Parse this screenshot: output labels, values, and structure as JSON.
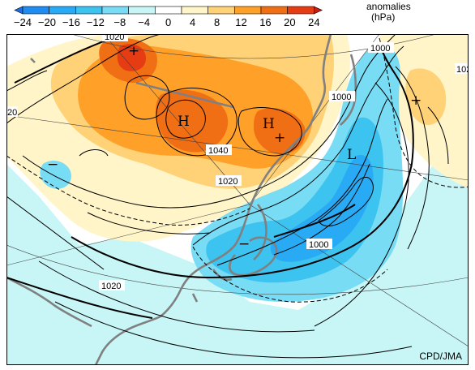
{
  "legend": {
    "ticks": [
      "-24",
      "-20",
      "-16",
      "-12",
      "-8",
      "-4",
      "0",
      "4",
      "8",
      "12",
      "16",
      "20",
      "24"
    ],
    "colors": [
      "#1e6ee6",
      "#1e8cf0",
      "#28aaf5",
      "#3cc3f0",
      "#78dcf5",
      "#c8f5f5",
      "#ffffff",
      "#fff5c8",
      "#ffd278",
      "#ffa028",
      "#f06e14",
      "#e63c14",
      "#c81e14"
    ],
    "title_line1": "anomalies",
    "title_line2": "(hPa)"
  },
  "map": {
    "isobar_labels": {
      "l1020_top": "1020",
      "l1000_right": "1000",
      "l1000_mid": "1000",
      "l1040": "1040",
      "l1020_center": "1020",
      "l1000_south": "1000",
      "l1020_west": "1020",
      "l102_edge": "102",
      "l20_edge": "20"
    },
    "centers": {
      "h1": "H",
      "h2": "H",
      "l1": "L"
    },
    "signs": {
      "plus_nw": "+",
      "plus_east": "+",
      "plus_mid": "+",
      "minus_west": "−",
      "minus_japan": "−"
    },
    "colors": {
      "ocean": "#c8f5f5",
      "land": "#ffffff",
      "pos_light": "#fff5c8",
      "pos_mid": "#ffd278",
      "pos_strong": "#ffa028",
      "pos_very": "#f06e14",
      "pos_max": "#e63c14",
      "neg_light": "#78dcf5",
      "neg_mid": "#3cc3f0",
      "neg_strong": "#28aaf5",
      "coast": "#808080"
    }
  },
  "credit": "CPD/JMA"
}
